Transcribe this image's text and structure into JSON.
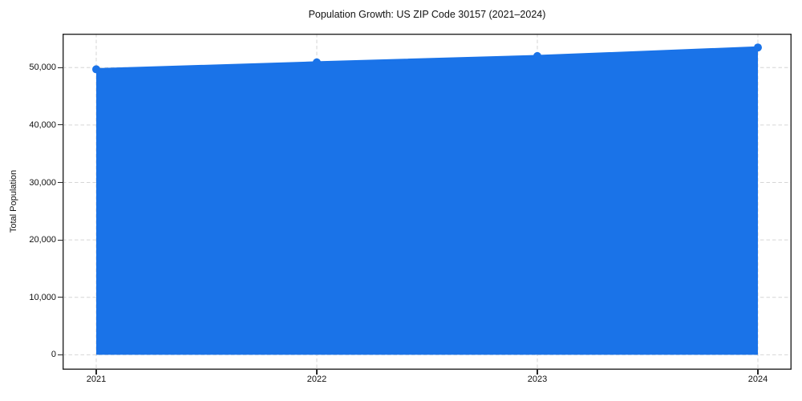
{
  "chart_data": {
    "type": "area",
    "title": "Population Growth: US ZIP Code 30157 (2021–2024)",
    "xlabel": "",
    "ylabel": "Total Population",
    "x": [
      2021,
      2022,
      2023,
      2024
    ],
    "series": [
      {
        "name": "Total Population",
        "values": [
          49700,
          50900,
          52000,
          53500
        ]
      }
    ],
    "xticks": [
      2021,
      2022,
      2023,
      2024
    ],
    "xticklabels": [
      "2021",
      "2022",
      "2023",
      "2024"
    ],
    "yticks": [
      0,
      10000,
      20000,
      30000,
      40000,
      50000
    ],
    "yticklabels": [
      "0",
      "10,000",
      "20,000",
      "30,000",
      "40,000",
      "50,000"
    ],
    "ylim": [
      -2600,
      55900
    ],
    "grid": true,
    "grid_style": "dashed",
    "legend": false,
    "colors": {
      "line": "#1a73e8",
      "marker": "#1a73e8",
      "fill": "#1a73e8",
      "fill_opacity": 0.12,
      "grid": "#d6d6d6",
      "spine": "#262626",
      "text": "#111111",
      "background": "#ffffff"
    },
    "marker": "circle",
    "marker_radius": 5,
    "line_width": 2.8
  }
}
